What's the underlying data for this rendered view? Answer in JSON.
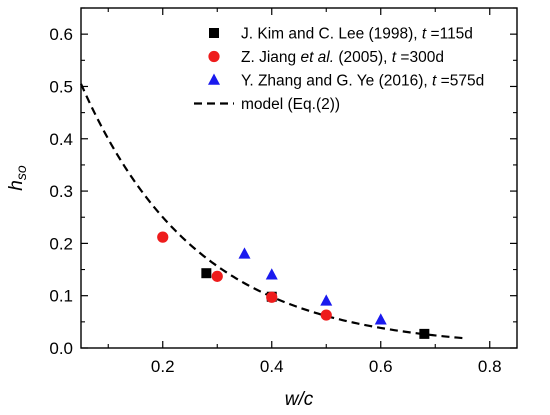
{
  "chart_data": {
    "type": "scatter",
    "xlabel": "w/c",
    "ylabel_main": "h",
    "ylabel_sub": "so",
    "xlim": [
      0.05,
      0.85
    ],
    "ylim": [
      0.0,
      0.65
    ],
    "x_ticks": [
      0.2,
      0.4,
      0.6,
      0.8
    ],
    "x_tick_labels": [
      "0.2",
      "0.4",
      "0.6",
      "0.8"
    ],
    "x_minor_ticks": [
      0.1,
      0.3,
      0.5,
      0.7
    ],
    "y_ticks": [
      0.0,
      0.1,
      0.2,
      0.3,
      0.4,
      0.5,
      0.6
    ],
    "y_tick_labels": [
      "0.0",
      "0.1",
      "0.2",
      "0.3",
      "0.4",
      "0.5",
      "0.6"
    ],
    "y_minor_ticks": [
      0.05,
      0.15,
      0.25,
      0.35,
      0.45,
      0.55,
      0.65
    ],
    "grid": false,
    "legend_position": "top-right",
    "series": [
      {
        "legend_parts": [
          {
            "text": "J. Kim and C. Lee (1998), ",
            "italic": false
          },
          {
            "text": "t",
            "italic": true
          },
          {
            "text": " =115d",
            "italic": false
          }
        ],
        "marker": "square",
        "color": "#000000",
        "points": [
          [
            0.28,
            0.143
          ],
          [
            0.4,
            0.098
          ],
          [
            0.68,
            0.027
          ]
        ]
      },
      {
        "legend_parts": [
          {
            "text": "Z. Jiang ",
            "italic": false
          },
          {
            "text": "et al.",
            "italic": true
          },
          {
            "text": " (2005), ",
            "italic": false
          },
          {
            "text": "t",
            "italic": true
          },
          {
            "text": " =300d",
            "italic": false
          }
        ],
        "marker": "circle",
        "color": "#ee1c1c",
        "points": [
          [
            0.2,
            0.212
          ],
          [
            0.3,
            0.137
          ],
          [
            0.4,
            0.097
          ],
          [
            0.5,
            0.063
          ]
        ]
      },
      {
        "legend_parts": [
          {
            "text": "Y. Zhang and G. Ye (2016), ",
            "italic": false
          },
          {
            "text": "t",
            "italic": true
          },
          {
            "text": " =575d",
            "italic": false
          }
        ],
        "marker": "triangle",
        "color": "#1a1aee",
        "points": [
          [
            0.35,
            0.18
          ],
          [
            0.4,
            0.14
          ],
          [
            0.5,
            0.09
          ],
          [
            0.6,
            0.054
          ]
        ]
      },
      {
        "legend_parts": [
          {
            "text": "model (Eq.(2))",
            "italic": false
          }
        ],
        "marker": "dashed-line",
        "color": "#000000",
        "curve": {
          "x_start": 0.05,
          "x_end": 0.75,
          "y_at_start": 0.505,
          "y_at_end": 0.019
        }
      }
    ]
  }
}
